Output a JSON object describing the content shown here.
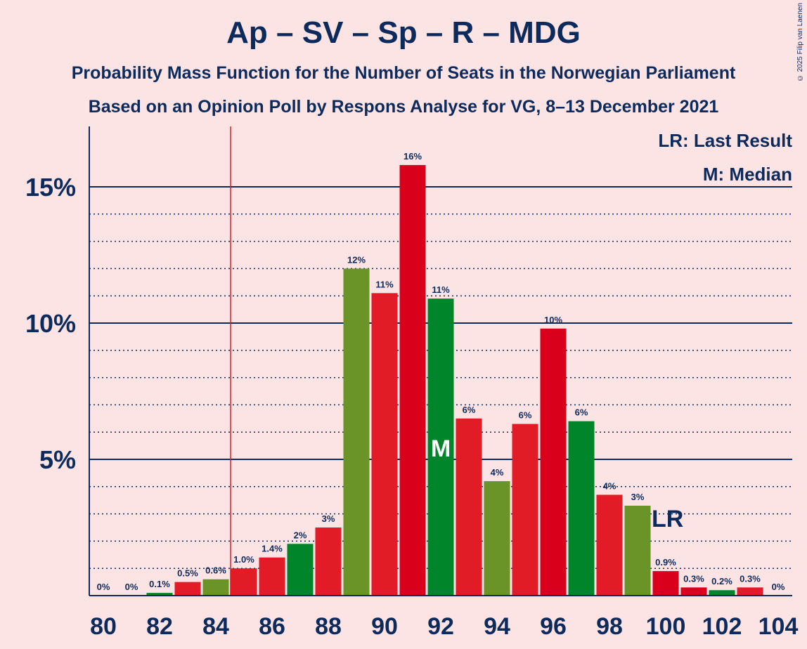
{
  "header": {
    "title": "Ap – SV – Sp – R – MDG",
    "subtitle": "Probability Mass Function for the Number of Seats in the Norwegian Parliament",
    "subtitle2": "Based on an Opinion Poll by Respons Analyse for VG, 8–13 December 2021",
    "copyright": "© 2025 Filip van Laenen"
  },
  "legend": {
    "last_result": "LR: Last Result",
    "median": "M: Median"
  },
  "colors": {
    "background": "#fde4e4",
    "text": "#0d2a5c",
    "green_dark": "#00852a",
    "green_olive": "#6b9428",
    "red": "#e11c26",
    "red_dark": "#d9001b",
    "last_result_line": "#e11c26"
  },
  "chart_data": {
    "type": "bar",
    "title": "Ap – SV – Sp – R – MDG",
    "x": [
      80,
      81,
      82,
      83,
      84,
      85,
      86,
      87,
      88,
      89,
      90,
      91,
      92,
      93,
      94,
      95,
      96,
      97,
      98,
      99,
      100,
      101,
      102,
      103,
      104
    ],
    "values": [
      0,
      0,
      0.1,
      0.5,
      0.6,
      1.0,
      1.4,
      1.9,
      2.5,
      12.0,
      11.1,
      15.8,
      10.9,
      6.5,
      4.2,
      6.3,
      9.8,
      6.4,
      3.7,
      3.3,
      0.9,
      0.3,
      0.2,
      0.3,
      0
    ],
    "labels": [
      "0%",
      "0%",
      "0.1%",
      "0.5%",
      "0.6%",
      "1.0%",
      "1.4%",
      "2%",
      "3%",
      "12%",
      "11%",
      "16%",
      "11%",
      "6%",
      "4%",
      "6%",
      "10%",
      "6%",
      "4%",
      "3%",
      "0.9%",
      "0.3%",
      "0.2%",
      "0.3%",
      "0%"
    ],
    "bar_colors": [
      "#00852a",
      "#e11c26",
      "#00852a",
      "#e11c26",
      "#6b9428",
      "#e11c26",
      "#e11c26",
      "#00852a",
      "#e11c26",
      "#6b9428",
      "#e11c26",
      "#d9001b",
      "#00852a",
      "#e11c26",
      "#6b9428",
      "#e11c26",
      "#d9001b",
      "#00852a",
      "#e11c26",
      "#6b9428",
      "#d9001b",
      "#d9001b",
      "#00852a",
      "#e11c26",
      "#6b9428"
    ],
    "x_ticks": [
      "80",
      "82",
      "84",
      "86",
      "88",
      "90",
      "92",
      "94",
      "96",
      "98",
      "100",
      "102",
      "104"
    ],
    "y_ticks": [
      "5%",
      "10%",
      "15%"
    ],
    "ylim": [
      0,
      17
    ],
    "median_seat": 92,
    "median_marker": "M",
    "last_result_seat": 100,
    "last_result_marker": "LR",
    "last_result_line_after_seat": 84
  }
}
